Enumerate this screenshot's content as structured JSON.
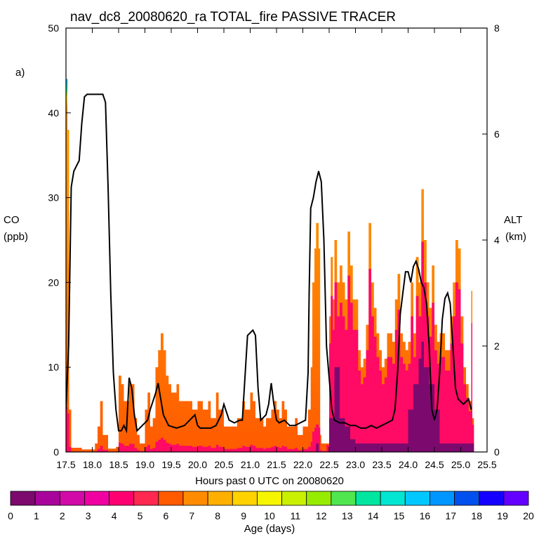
{
  "chart_data": {
    "type": "area",
    "title": "nav_dc8_20080620_ra TOTAL_fire PASSIVE TRACER",
    "panel_label": "a)",
    "xlabel": "Hours past 0 UTC on 20080620",
    "ylabel_left": [
      "CO",
      "(ppb)"
    ],
    "ylabel_right": [
      "ALT",
      "(km)"
    ],
    "xlim": [
      17.5,
      25.5
    ],
    "ylim_left": [
      0,
      50
    ],
    "ylim_right": [
      0,
      8
    ],
    "x_ticks": [
      "17.5",
      "18.0",
      "18.5",
      "19.0",
      "19.5",
      "20.0",
      "20.5",
      "21.0",
      "21.5",
      "22.0",
      "22.5",
      "23.0",
      "23.5",
      "24.0",
      "24.5",
      "25.0",
      "25.5"
    ],
    "y_ticks_left": [
      "0",
      "10",
      "20",
      "30",
      "40",
      "50"
    ],
    "y_ticks_right": [
      "0",
      "2",
      "4",
      "6",
      "8"
    ],
    "colorbar_label": "Age (days)",
    "colorbar_ticks": [
      "0",
      "1",
      "2",
      "3",
      "4",
      "5",
      "6",
      "7",
      "8",
      "9",
      "10",
      "11",
      "12",
      "13",
      "14",
      "15",
      "16",
      "17",
      "18",
      "19",
      "20"
    ],
    "colorbar_colors": [
      "#7c0a6e",
      "#a8049c",
      "#d10aa8",
      "#f000a0",
      "#ff0070",
      "#ff2850",
      "#ff5a00",
      "#ff8c00",
      "#ffaf00",
      "#ffd200",
      "#f5f500",
      "#c8f000",
      "#96eb00",
      "#50e650",
      "#00e6a0",
      "#00e6d2",
      "#00c8ff",
      "#0096ff",
      "#0050f0",
      "#1400ff",
      "#6400ff"
    ],
    "co_total": [
      [
        17.5,
        44
      ],
      [
        17.53,
        38
      ],
      [
        17.56,
        5
      ],
      [
        17.6,
        0.5
      ],
      [
        17.8,
        0.3
      ],
      [
        18.05,
        1
      ],
      [
        18.1,
        3
      ],
      [
        18.15,
        6
      ],
      [
        18.2,
        2
      ],
      [
        18.3,
        0.4
      ],
      [
        18.45,
        0.6
      ],
      [
        18.5,
        9
      ],
      [
        18.55,
        8
      ],
      [
        18.6,
        6
      ],
      [
        18.7,
        8
      ],
      [
        18.8,
        4
      ],
      [
        18.85,
        2
      ],
      [
        18.9,
        1
      ],
      [
        18.95,
        1
      ],
      [
        19.0,
        5
      ],
      [
        19.05,
        7
      ],
      [
        19.1,
        3
      ],
      [
        19.15,
        4
      ],
      [
        19.2,
        10
      ],
      [
        19.25,
        12
      ],
      [
        19.3,
        14
      ],
      [
        19.35,
        12
      ],
      [
        19.4,
        9
      ],
      [
        19.45,
        8
      ],
      [
        19.5,
        7
      ],
      [
        19.55,
        7
      ],
      [
        19.6,
        8
      ],
      [
        19.65,
        6
      ],
      [
        19.7,
        6
      ],
      [
        19.8,
        6
      ],
      [
        19.9,
        5
      ],
      [
        20.0,
        6
      ],
      [
        20.1,
        5
      ],
      [
        20.2,
        6
      ],
      [
        20.25,
        4
      ],
      [
        20.3,
        4
      ],
      [
        20.35,
        7
      ],
      [
        20.4,
        5
      ],
      [
        20.5,
        3
      ],
      [
        20.55,
        3
      ],
      [
        20.65,
        3
      ],
      [
        20.75,
        4
      ],
      [
        20.85,
        6
      ],
      [
        20.9,
        5
      ],
      [
        21.0,
        7
      ],
      [
        21.05,
        6
      ],
      [
        21.1,
        4
      ],
      [
        21.2,
        4
      ],
      [
        21.25,
        3
      ],
      [
        21.3,
        4
      ],
      [
        21.4,
        5
      ],
      [
        21.45,
        6
      ],
      [
        21.5,
        5
      ],
      [
        21.55,
        4
      ],
      [
        21.6,
        6
      ],
      [
        21.65,
        5
      ],
      [
        21.7,
        3
      ],
      [
        21.75,
        3
      ],
      [
        21.85,
        4
      ],
      [
        21.9,
        2
      ],
      [
        22.0,
        3
      ],
      [
        22.1,
        5
      ],
      [
        22.15,
        10
      ],
      [
        22.18,
        20
      ],
      [
        22.22,
        24
      ],
      [
        22.25,
        27
      ],
      [
        22.3,
        24
      ],
      [
        22.33,
        2
      ],
      [
        22.35,
        1
      ],
      [
        22.45,
        1
      ],
      [
        22.5,
        16
      ],
      [
        22.53,
        23
      ],
      [
        22.57,
        18
      ],
      [
        22.6,
        25
      ],
      [
        22.65,
        20
      ],
      [
        22.7,
        22
      ],
      [
        22.75,
        20
      ],
      [
        22.8,
        18
      ],
      [
        22.85,
        26
      ],
      [
        22.9,
        22
      ],
      [
        22.95,
        18
      ],
      [
        23.0,
        18
      ],
      [
        23.05,
        12
      ],
      [
        23.1,
        10
      ],
      [
        23.15,
        11
      ],
      [
        23.2,
        15
      ],
      [
        23.25,
        27
      ],
      [
        23.3,
        20
      ],
      [
        23.35,
        17
      ],
      [
        23.4,
        14
      ],
      [
        23.45,
        12
      ],
      [
        23.5,
        10
      ],
      [
        23.55,
        11
      ],
      [
        23.6,
        14
      ],
      [
        23.7,
        13
      ],
      [
        23.75,
        18
      ],
      [
        23.8,
        21
      ],
      [
        23.85,
        14
      ],
      [
        23.9,
        13
      ],
      [
        23.95,
        12
      ],
      [
        24.0,
        13
      ],
      [
        24.05,
        20
      ],
      [
        24.1,
        14
      ],
      [
        24.15,
        23
      ],
      [
        24.2,
        20
      ],
      [
        24.25,
        31
      ],
      [
        24.3,
        25
      ],
      [
        24.35,
        20
      ],
      [
        24.4,
        17
      ],
      [
        24.45,
        22
      ],
      [
        24.5,
        15
      ],
      [
        24.55,
        13
      ],
      [
        24.6,
        14
      ],
      [
        24.7,
        12
      ],
      [
        24.8,
        16
      ],
      [
        24.85,
        20
      ],
      [
        24.9,
        25
      ],
      [
        24.95,
        24
      ],
      [
        25.0,
        16
      ],
      [
        25.05,
        10
      ],
      [
        25.1,
        8
      ],
      [
        25.15,
        6
      ],
      [
        25.2,
        19
      ],
      [
        25.22,
        4
      ],
      [
        25.25,
        0
      ]
    ],
    "co_young_0_3d": [
      [
        17.5,
        0
      ],
      [
        22.2,
        0
      ],
      [
        22.25,
        1
      ],
      [
        22.3,
        0
      ],
      [
        22.45,
        0
      ],
      [
        22.5,
        4
      ],
      [
        22.6,
        10
      ],
      [
        22.7,
        4
      ],
      [
        22.8,
        3
      ],
      [
        22.9,
        1.5
      ],
      [
        23.0,
        1
      ],
      [
        23.5,
        1
      ],
      [
        23.9,
        1
      ],
      [
        24.0,
        5
      ],
      [
        24.1,
        8
      ],
      [
        24.2,
        11
      ],
      [
        24.25,
        13
      ],
      [
        24.3,
        10
      ],
      [
        24.4,
        8
      ],
      [
        24.5,
        5
      ],
      [
        24.6,
        1
      ],
      [
        25.0,
        1
      ],
      [
        25.25,
        0
      ]
    ],
    "altitude_km": [
      [
        17.5,
        0.8
      ],
      [
        17.55,
        2
      ],
      [
        17.6,
        5
      ],
      [
        17.65,
        5.3
      ],
      [
        17.7,
        5.4
      ],
      [
        17.75,
        5.5
      ],
      [
        17.8,
        6.2
      ],
      [
        17.85,
        6.7
      ],
      [
        17.9,
        6.75
      ],
      [
        18.2,
        6.75
      ],
      [
        18.25,
        6.6
      ],
      [
        18.3,
        5
      ],
      [
        18.35,
        3
      ],
      [
        18.4,
        1.5
      ],
      [
        18.45,
        0.8
      ],
      [
        18.5,
        0.4
      ],
      [
        18.55,
        0.4
      ],
      [
        18.6,
        0.5
      ],
      [
        18.65,
        0.4
      ],
      [
        18.7,
        1.4
      ],
      [
        18.75,
        1.2
      ],
      [
        18.8,
        0.7
      ],
      [
        18.85,
        0.4
      ],
      [
        18.95,
        0.5
      ],
      [
        19.05,
        0.6
      ],
      [
        19.1,
        0.8
      ],
      [
        19.2,
        1.1
      ],
      [
        19.25,
        1.3
      ],
      [
        19.3,
        1.0
      ],
      [
        19.35,
        0.7
      ],
      [
        19.45,
        0.5
      ],
      [
        19.6,
        0.45
      ],
      [
        19.75,
        0.5
      ],
      [
        19.85,
        0.6
      ],
      [
        19.95,
        0.7
      ],
      [
        20.0,
        0.5
      ],
      [
        20.05,
        0.45
      ],
      [
        20.25,
        0.45
      ],
      [
        20.35,
        0.5
      ],
      [
        20.45,
        0.7
      ],
      [
        20.5,
        0.9
      ],
      [
        20.6,
        0.6
      ],
      [
        20.7,
        0.55
      ],
      [
        20.8,
        0.6
      ],
      [
        20.85,
        0.6
      ],
      [
        20.9,
        1.4
      ],
      [
        20.95,
        2.2
      ],
      [
        21.05,
        2.3
      ],
      [
        21.1,
        2.2
      ],
      [
        21.15,
        1.2
      ],
      [
        21.2,
        0.6
      ],
      [
        21.3,
        0.7
      ],
      [
        21.35,
        0.9
      ],
      [
        21.4,
        1.3
      ],
      [
        21.45,
        0.9
      ],
      [
        21.5,
        0.6
      ],
      [
        21.55,
        0.55
      ],
      [
        21.65,
        0.6
      ],
      [
        21.75,
        0.5
      ],
      [
        21.85,
        0.5
      ],
      [
        21.95,
        0.55
      ],
      [
        22.05,
        0.6
      ],
      [
        22.1,
        1.5
      ],
      [
        22.12,
        3
      ],
      [
        22.15,
        4.6
      ],
      [
        22.2,
        4.8
      ],
      [
        22.25,
        5.1
      ],
      [
        22.3,
        5.3
      ],
      [
        22.35,
        5.1
      ],
      [
        22.4,
        4.0
      ],
      [
        22.45,
        2
      ],
      [
        22.5,
        1.4
      ],
      [
        22.55,
        0.8
      ],
      [
        22.6,
        0.6
      ],
      [
        22.7,
        0.55
      ],
      [
        22.8,
        0.55
      ],
      [
        22.9,
        0.5
      ],
      [
        23.0,
        0.5
      ],
      [
        23.1,
        0.45
      ],
      [
        23.2,
        0.45
      ],
      [
        23.3,
        0.5
      ],
      [
        23.4,
        0.45
      ],
      [
        23.5,
        0.5
      ],
      [
        23.6,
        0.55
      ],
      [
        23.7,
        0.6
      ],
      [
        23.75,
        0.8
      ],
      [
        23.8,
        1.5
      ],
      [
        23.85,
        2.6
      ],
      [
        23.9,
        3.0
      ],
      [
        23.95,
        3.4
      ],
      [
        24.0,
        3.4
      ],
      [
        24.05,
        3.2
      ],
      [
        24.1,
        3.5
      ],
      [
        24.15,
        3.6
      ],
      [
        24.2,
        3.45
      ],
      [
        24.25,
        3.2
      ],
      [
        24.3,
        3.1
      ],
      [
        24.35,
        2.8
      ],
      [
        24.4,
        2.0
      ],
      [
        24.45,
        0.8
      ],
      [
        24.5,
        0.6
      ],
      [
        24.55,
        0.8
      ],
      [
        24.6,
        1.5
      ],
      [
        24.65,
        2.5
      ],
      [
        24.7,
        2.9
      ],
      [
        24.75,
        3.0
      ],
      [
        24.8,
        2.8
      ],
      [
        24.85,
        2.0
      ],
      [
        24.9,
        1.2
      ],
      [
        24.95,
        1.0
      ],
      [
        25.05,
        0.9
      ],
      [
        25.15,
        1.0
      ],
      [
        25.2,
        0.8
      ]
    ]
  }
}
